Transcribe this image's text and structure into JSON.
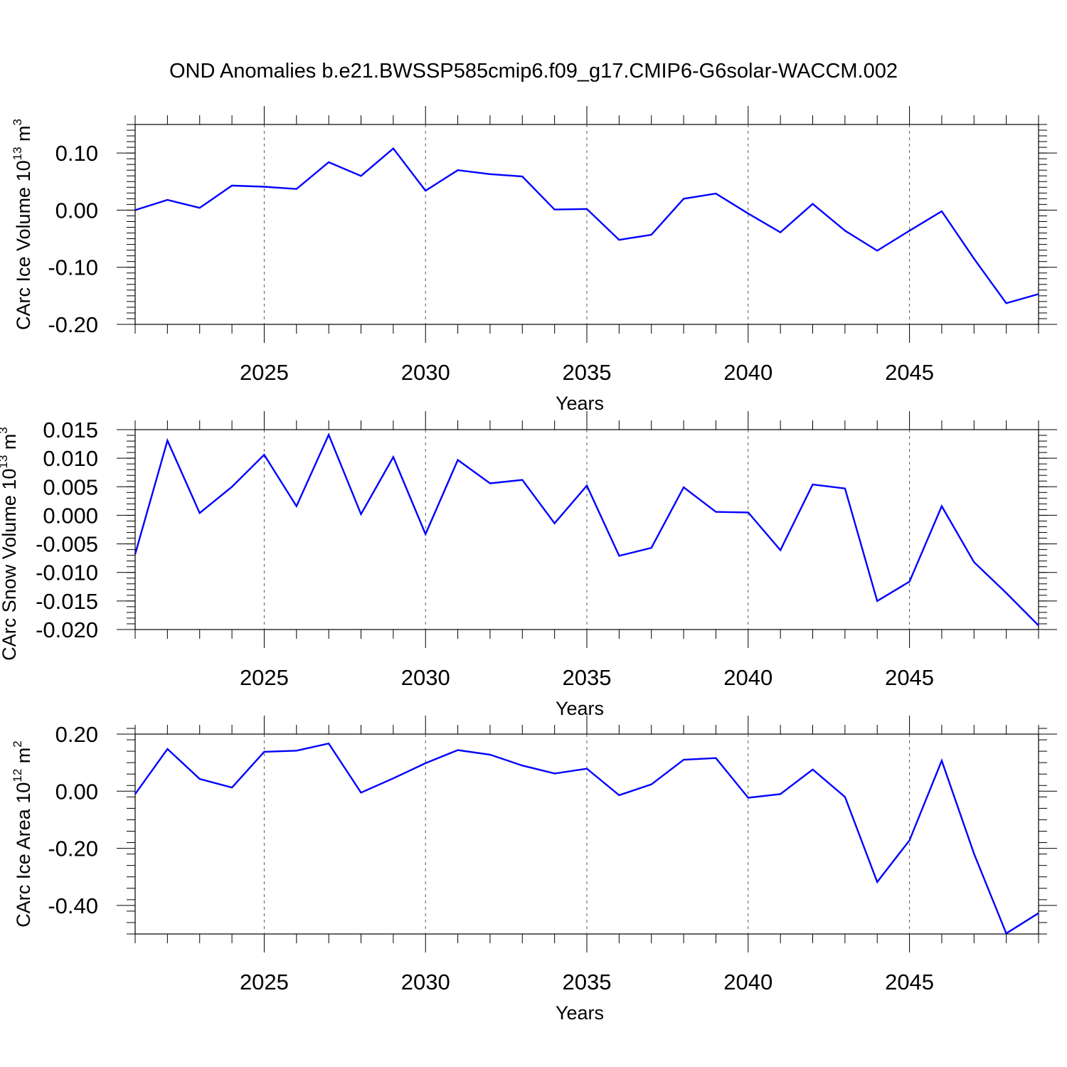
{
  "title": "OND Anomalies b.e21.BWSSP585cmip6.f09_g17.CMIP6-G6solar-WACCM.002",
  "line_color": "#0000ff",
  "chart_data": [
    {
      "type": "line",
      "ylabel": "CArc Ice Volume 10",
      "ylabel_exp": "13",
      "ylabel_unit": " m",
      "ylabel_unit_exp": "3",
      "xlabel": "Years",
      "xlim": [
        2021,
        2049
      ],
      "ylim": [
        -0.2,
        0.15
      ],
      "xticks": [
        2025,
        2030,
        2035,
        2040,
        2045
      ],
      "yticks": [
        0.1,
        0.0,
        -0.1,
        -0.2
      ],
      "ytick_labels": [
        "0.10",
        "0.00",
        "-0.10",
        "-0.20"
      ],
      "x": [
        2021,
        2022,
        2023,
        2024,
        2025,
        2026,
        2027,
        2028,
        2029,
        2030,
        2031,
        2032,
        2033,
        2034,
        2035,
        2036,
        2037,
        2038,
        2039,
        2040,
        2041,
        2042,
        2043,
        2044,
        2045,
        2046,
        2047,
        2048,
        2049
      ],
      "y": [
        0.0,
        0.018,
        0.004,
        0.043,
        0.041,
        0.037,
        0.084,
        0.06,
        0.108,
        0.034,
        0.07,
        0.063,
        0.059,
        0.001,
        0.002,
        -0.052,
        -0.043,
        0.02,
        0.029,
        -0.006,
        -0.039,
        0.011,
        -0.036,
        -0.071,
        -0.036,
        -0.002,
        -0.085,
        -0.163,
        -0.147
      ],
      "grid": "vertical dashed at major x ticks"
    },
    {
      "type": "line",
      "ylabel": "CArc Snow Volume 10",
      "ylabel_exp": "13",
      "ylabel_unit": " m",
      "ylabel_unit_exp": "3",
      "xlabel": "Years",
      "xlim": [
        2021,
        2049
      ],
      "ylim": [
        -0.02,
        0.015
      ],
      "xticks": [
        2025,
        2030,
        2035,
        2040,
        2045
      ],
      "yticks": [
        0.015,
        0.01,
        0.005,
        0.0,
        -0.005,
        -0.01,
        -0.015,
        -0.02
      ],
      "ytick_labels": [
        "0.015",
        "0.010",
        "0.005",
        "0.000",
        "-0.005",
        "-0.010",
        "-0.015",
        "-0.020"
      ],
      "x": [
        2021,
        2022,
        2023,
        2024,
        2025,
        2026,
        2027,
        2028,
        2029,
        2030,
        2031,
        2032,
        2033,
        2034,
        2035,
        2036,
        2037,
        2038,
        2039,
        2040,
        2041,
        2042,
        2043,
        2044,
        2045,
        2046,
        2047,
        2048,
        2049
      ],
      "y": [
        -0.0068,
        0.0131,
        0.0004,
        0.005,
        0.0106,
        0.0016,
        0.0141,
        0.0002,
        0.0102,
        -0.0033,
        0.0097,
        0.0056,
        0.0062,
        -0.0014,
        0.0052,
        -0.0071,
        -0.0057,
        0.0049,
        0.0006,
        0.0005,
        -0.0061,
        0.0054,
        0.0047,
        -0.015,
        -0.0116,
        0.0016,
        -0.0082,
        -0.0136,
        -0.0193
      ],
      "grid": "vertical dashed at major x ticks"
    },
    {
      "type": "line",
      "ylabel": "CArc Ice Area 10",
      "ylabel_exp": "12",
      "ylabel_unit": " m",
      "ylabel_unit_exp": "2",
      "xlabel": "Years",
      "xlim": [
        2021,
        2049
      ],
      "ylim": [
        -0.5,
        0.2
      ],
      "xticks": [
        2025,
        2030,
        2035,
        2040,
        2045
      ],
      "yticks": [
        0.2,
        0.0,
        -0.2,
        -0.4
      ],
      "ytick_labels": [
        "0.20",
        "0.00",
        "-0.20",
        "-0.40"
      ],
      "x": [
        2021,
        2022,
        2023,
        2024,
        2025,
        2026,
        2027,
        2028,
        2029,
        2030,
        2031,
        2032,
        2033,
        2034,
        2035,
        2036,
        2037,
        2038,
        2039,
        2040,
        2041,
        2042,
        2043,
        2044,
        2045,
        2046,
        2047,
        2048,
        2049
      ],
      "y": [
        -0.01,
        0.148,
        0.043,
        0.013,
        0.138,
        0.142,
        0.167,
        -0.005,
        0.045,
        0.098,
        0.144,
        0.128,
        0.09,
        0.062,
        0.079,
        -0.014,
        0.024,
        0.11,
        0.116,
        -0.023,
        -0.01,
        0.076,
        -0.02,
        -0.318,
        -0.172,
        0.107,
        -0.219,
        -0.498,
        -0.427
      ],
      "grid": "vertical dashed at major x ticks"
    }
  ]
}
